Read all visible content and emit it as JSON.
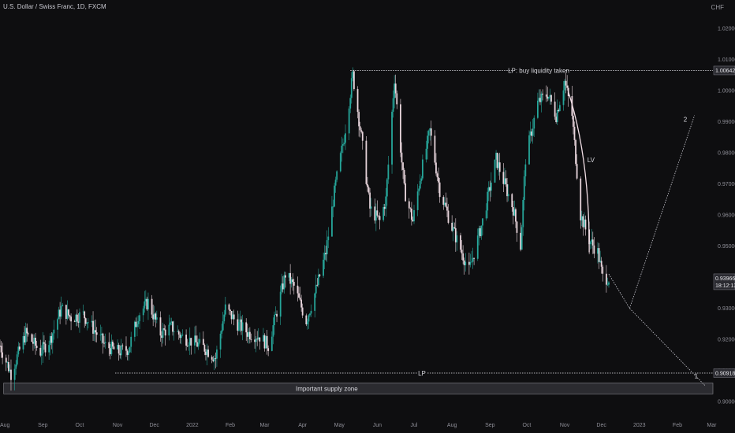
{
  "header": {
    "title": "U.S. Dollar / Swiss Franc, 1D, FXCM",
    "unit": "CHF"
  },
  "colors": {
    "background": "#0e0e10",
    "up": "#26a69a",
    "down": "#e8d5dc",
    "annotation": "#d0d0d6",
    "badge": "#2a2a30"
  },
  "chart_data": {
    "type": "candlestick",
    "ylim": [
      0.895,
      1.025
    ],
    "y_ticks": [
      0.9,
      0.91,
      0.92,
      0.93,
      0.94,
      0.95,
      0.96,
      0.97,
      0.98,
      0.99,
      1.0,
      1.01,
      1.02
    ],
    "y_tick_labels": [
      "0.90000",
      "0.91000",
      "0.92000",
      "0.93000",
      "0.94000",
      "0.95000",
      "0.96000",
      "0.97000",
      "0.98000",
      "0.99000",
      "1.00000",
      "1.01000",
      "1.02000"
    ],
    "x_range": [
      "2021-07-28",
      "2023-03-02"
    ],
    "x_ticks": [
      {
        "label": "Aug",
        "date": "2021-08-01"
      },
      {
        "label": "Sep",
        "date": "2021-09-01"
      },
      {
        "label": "Oct",
        "date": "2021-10-01"
      },
      {
        "label": "Nov",
        "date": "2021-11-01"
      },
      {
        "label": "Dec",
        "date": "2021-12-01"
      },
      {
        "label": "2022",
        "date": "2022-01-01"
      },
      {
        "label": "Feb",
        "date": "2022-02-01"
      },
      {
        "label": "Mar",
        "date": "2022-03-01"
      },
      {
        "label": "Apr",
        "date": "2022-04-01"
      },
      {
        "label": "May",
        "date": "2022-05-01"
      },
      {
        "label": "Jun",
        "date": "2022-06-01"
      },
      {
        "label": "Jul",
        "date": "2022-07-01"
      },
      {
        "label": "Aug",
        "date": "2022-08-01"
      },
      {
        "label": "Sep",
        "date": "2022-09-01"
      },
      {
        "label": "Oct",
        "date": "2022-10-01"
      },
      {
        "label": "Nov",
        "date": "2022-11-01"
      },
      {
        "label": "Dec",
        "date": "2022-12-01"
      },
      {
        "label": "2023",
        "date": "2023-01-01"
      },
      {
        "label": "Feb",
        "date": "2023-02-01"
      },
      {
        "label": "Mar",
        "date": "2023-03-01"
      }
    ],
    "price_path": [
      [
        "2021-07-28",
        0.918
      ],
      [
        "2021-08-06",
        0.909
      ],
      [
        "2021-08-18",
        0.922
      ],
      [
        "2021-08-30",
        0.916
      ],
      [
        "2021-09-07",
        0.92
      ],
      [
        "2021-09-16",
        0.93
      ],
      [
        "2021-09-24",
        0.927
      ],
      [
        "2021-10-04",
        0.928
      ],
      [
        "2021-10-13",
        0.923
      ],
      [
        "2021-10-22",
        0.918
      ],
      [
        "2021-11-02",
        0.916
      ],
      [
        "2021-11-10",
        0.917
      ],
      [
        "2021-11-18",
        0.928
      ],
      [
        "2021-11-26",
        0.932
      ],
      [
        "2021-12-06",
        0.922
      ],
      [
        "2021-12-15",
        0.924
      ],
      [
        "2021-12-23",
        0.921
      ],
      [
        "2022-01-03",
        0.919
      ],
      [
        "2022-01-12",
        0.917
      ],
      [
        "2022-01-20",
        0.914
      ],
      [
        "2022-01-28",
        0.93
      ],
      [
        "2022-02-07",
        0.925
      ],
      [
        "2022-02-16",
        0.922
      ],
      [
        "2022-02-25",
        0.921
      ],
      [
        "2022-03-04",
        0.918
      ],
      [
        "2022-03-11",
        0.929
      ],
      [
        "2022-03-18",
        0.941
      ],
      [
        "2022-03-25",
        0.937
      ],
      [
        "2022-04-04",
        0.926
      ],
      [
        "2022-04-12",
        0.936
      ],
      [
        "2022-04-20",
        0.948
      ],
      [
        "2022-04-28",
        0.97
      ],
      [
        "2022-05-05",
        0.985
      ],
      [
        "2022-05-12",
        1.005
      ],
      [
        "2022-05-19",
        0.985
      ],
      [
        "2022-05-26",
        0.962
      ],
      [
        "2022-06-03",
        0.958
      ],
      [
        "2022-06-08",
        0.965
      ],
      [
        "2022-06-15",
        1.004
      ],
      [
        "2022-06-23",
        0.968
      ],
      [
        "2022-06-30",
        0.958
      ],
      [
        "2022-07-06",
        0.972
      ],
      [
        "2022-07-14",
        0.987
      ],
      [
        "2022-07-22",
        0.968
      ],
      [
        "2022-08-01",
        0.956
      ],
      [
        "2022-08-10",
        0.947
      ],
      [
        "2022-08-15",
        0.942
      ],
      [
        "2022-08-26",
        0.958
      ],
      [
        "2022-09-06",
        0.978
      ],
      [
        "2022-09-12",
        0.971
      ],
      [
        "2022-09-20",
        0.962
      ],
      [
        "2022-09-26",
        0.95
      ],
      [
        "2022-09-30",
        0.978
      ],
      [
        "2022-10-10",
        0.996
      ],
      [
        "2022-10-18",
        0.999
      ],
      [
        "2022-10-25",
        0.992
      ],
      [
        "2022-11-01",
        1.003
      ],
      [
        "2022-11-07",
        0.992
      ],
      [
        "2022-11-14",
        0.96
      ],
      [
        "2022-11-21",
        0.952
      ],
      [
        "2022-11-28",
        0.948
      ],
      [
        "2022-12-02",
        0.94
      ],
      [
        "2022-12-07",
        0.9396
      ]
    ],
    "hlines": [
      {
        "value": 1.00642,
        "label": "LP: buy liquidity taken",
        "start": "2022-05-10"
      },
      {
        "value": 0.90918,
        "label": "LP",
        "start": "2021-10-30"
      }
    ],
    "zone": {
      "label": "Important supply zone",
      "y_top": 0.906,
      "y_bottom": 0.9025,
      "start": "2021-07-31"
    },
    "arrow": {
      "label": "LV",
      "points": [
        [
          "2022-11-04",
          0.9995
        ],
        [
          "2022-11-15",
          0.978
        ],
        [
          "2022-11-21",
          0.948
        ]
      ]
    },
    "projection_1": {
      "label": "1",
      "points": [
        [
          "2022-12-07",
          0.941
        ],
        [
          "2022-12-24",
          0.93
        ],
        [
          "2023-02-24",
          0.905
        ]
      ]
    },
    "projection_2": {
      "label": "2",
      "points": [
        [
          "2022-12-24",
          0.93
        ],
        [
          "2023-02-15",
          0.992
        ]
      ]
    },
    "price_badges": [
      {
        "value": "1.00642",
        "y": 1.00642
      },
      {
        "value": "0.93966",
        "sub": "18:12:13",
        "y": 0.93966
      },
      {
        "value": "0.90918",
        "y": 0.90918
      }
    ]
  }
}
